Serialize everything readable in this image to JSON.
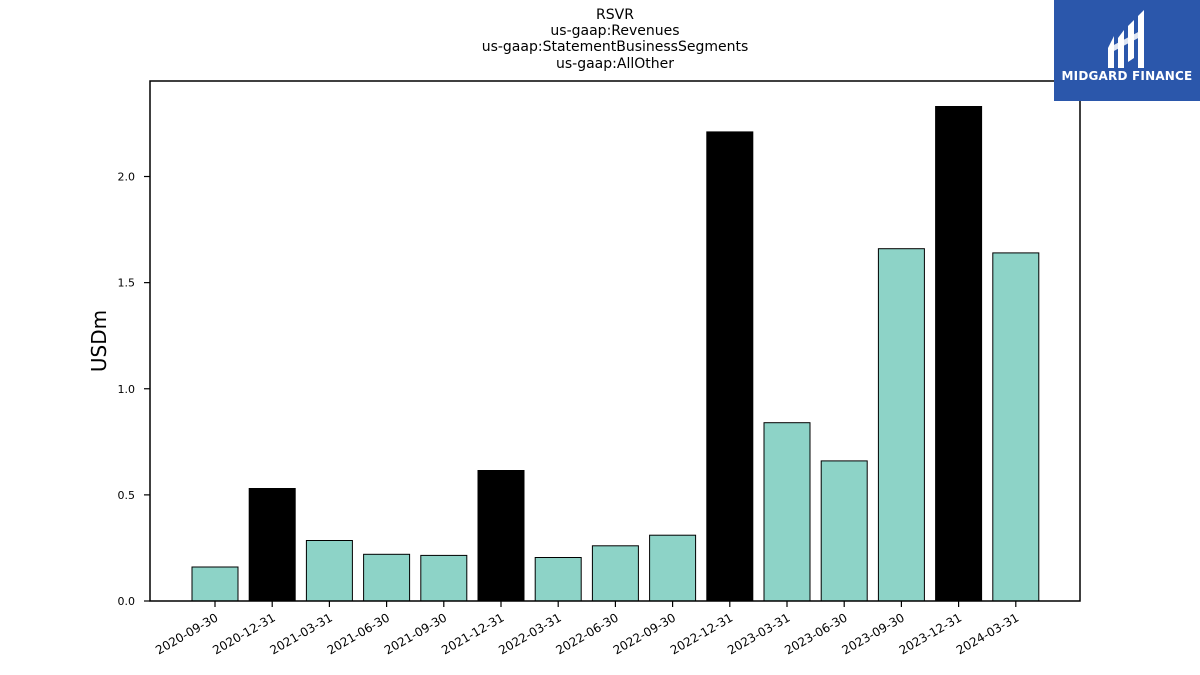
{
  "chart_data": {
    "type": "bar",
    "title_lines": [
      "RSVR",
      "us-gaap:Revenues",
      "us-gaap:StatementBusinessSegments",
      "us-gaap:AllOther"
    ],
    "ylabel": "USDm",
    "xlabel": "",
    "ylim": [
      0,
      2.45
    ],
    "yticks": [
      0.0,
      0.5,
      1.0,
      1.5,
      2.0
    ],
    "ytick_labels": [
      "0.0",
      "0.5",
      "1.0",
      "1.5",
      "2.0"
    ],
    "categories": [
      "2020-09-30",
      "2020-12-31",
      "2021-03-31",
      "2021-06-30",
      "2021-09-30",
      "2021-12-31",
      "2022-03-31",
      "2022-06-30",
      "2022-09-30",
      "2022-12-31",
      "2023-03-31",
      "2023-06-30",
      "2023-09-30",
      "2023-12-31",
      "2024-03-31"
    ],
    "values": [
      0.16,
      0.53,
      0.285,
      0.22,
      0.215,
      0.615,
      0.205,
      0.26,
      0.31,
      2.21,
      0.84,
      0.66,
      1.66,
      2.33,
      1.64
    ],
    "highlight": [
      false,
      true,
      false,
      false,
      false,
      true,
      false,
      false,
      false,
      true,
      false,
      false,
      false,
      true,
      false
    ],
    "colors": {
      "normal": "#8dd3c7",
      "highlight": "#000000",
      "edge": "#000000"
    },
    "grid": false
  },
  "logo": {
    "text": "MIDGARD FINANCE",
    "background": "#2b57ab"
  }
}
